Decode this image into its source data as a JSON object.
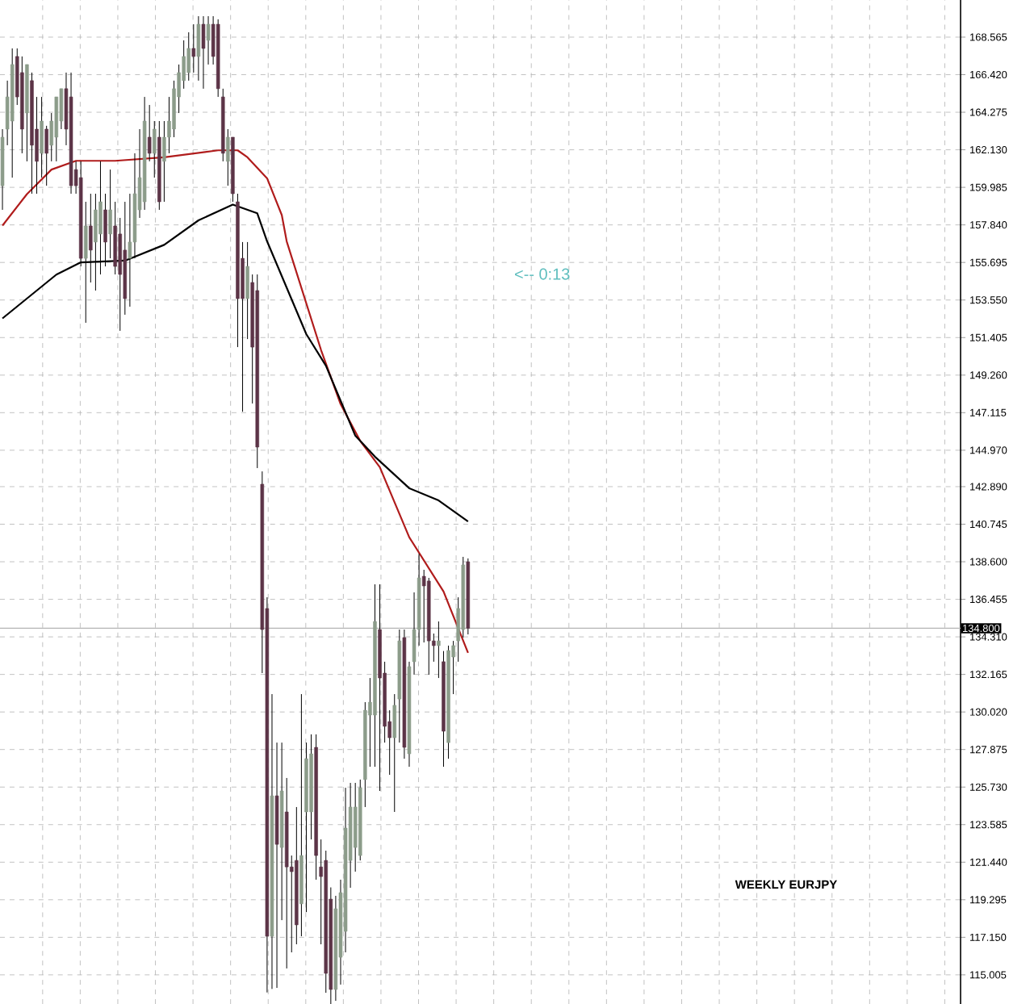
{
  "chart_data": {
    "type": "candlestick",
    "annotations": [
      "<-- 0:13",
      "WEEKLY EURJPY"
    ],
    "categories": [
      null,
      null,
      null,
      null,
      null,
      null,
      null,
      null,
      null,
      null,
      null,
      null,
      null,
      null,
      null,
      null,
      null,
      null,
      null,
      null,
      null,
      null,
      null,
      null,
      null,
      null,
      null,
      null,
      null,
      null,
      null,
      null,
      null,
      null,
      null,
      null,
      null,
      null,
      null,
      null,
      null,
      null,
      null,
      null,
      null,
      null,
      null,
      null,
      null,
      null,
      null,
      null,
      null,
      null,
      null,
      null,
      null,
      null,
      null,
      null,
      null,
      null,
      null,
      null,
      null,
      null,
      null,
      null,
      null,
      null,
      null,
      null,
      null,
      null,
      null,
      null,
      null,
      null,
      null,
      null,
      null,
      null,
      null,
      null,
      null,
      null,
      null,
      null,
      null,
      null,
      null,
      null,
      null,
      null,
      null,
      null,
      null,
      null,
      null,
      null,
      null,
      null,
      null,
      null,
      null,
      null,
      null,
      null,
      null,
      null,
      null,
      null,
      null,
      null,
      null,
      null,
      null,
      null,
      null,
      null,
      null,
      null,
      null,
      null,
      null,
      null,
      null,
      null,
      null,
      null,
      null,
      null,
      null,
      null,
      null,
      null,
      null,
      null,
      null,
      null,
      null,
      null,
      null,
      null,
      null,
      null,
      null,
      null,
      null,
      null,
      null,
      null,
      null,
      null,
      null,
      null,
      null,
      null,
      null,
      null,
      null,
      null,
      null,
      null,
      null,
      null,
      null,
      null,
      null,
      null,
      null,
      null,
      null,
      null,
      null,
      null,
      null,
      null,
      null,
      null,
      null,
      null,
      null,
      null,
      null,
      null,
      null,
      null,
      null,
      null,
      null,
      null,
      null,
      null,
      null,
      null
    ],
    "ohlc": [
      [
        160.08,
        163.31,
        158.7,
        162.85
      ],
      [
        163.31,
        166.08,
        162.39,
        165.15
      ],
      [
        163.77,
        167.92,
        160.54,
        167.0
      ],
      [
        167.46,
        167.92,
        164.69,
        165.15
      ],
      [
        166.54,
        167.46,
        161.93,
        163.31
      ],
      [
        164.23,
        167.0,
        161.47,
        167.0
      ],
      [
        166.08,
        166.54,
        159.62,
        162.39
      ],
      [
        163.31,
        165.15,
        159.62,
        161.47
      ],
      [
        161.93,
        165.15,
        160.54,
        163.77
      ],
      [
        163.31,
        163.5,
        160.08,
        161.93
      ],
      [
        162.39,
        164.23,
        161.47,
        163.77
      ],
      [
        162.85,
        165.15,
        161.47,
        165.15
      ],
      [
        163.77,
        165.62,
        163.31,
        165.62
      ],
      [
        165.62,
        166.54,
        162.39,
        163.31
      ],
      [
        165.15,
        166.54,
        159.62,
        160.08
      ],
      [
        161.0,
        161.47,
        159.62,
        160.08
      ],
      [
        160.54,
        161.47,
        155.47,
        155.93
      ],
      [
        155.93,
        159.16,
        152.25,
        157.78
      ],
      [
        157.78,
        159.62,
        154.55,
        156.4
      ],
      [
        156.86,
        159.62,
        154.09,
        158.7
      ],
      [
        157.32,
        161.47,
        155.01,
        159.16
      ],
      [
        158.7,
        159.62,
        155.47,
        156.86
      ],
      [
        157.32,
        161.0,
        155.93,
        158.7
      ],
      [
        157.78,
        159.16,
        155.01,
        155.47
      ],
      [
        157.32,
        158.24,
        151.79,
        155.01
      ],
      [
        156.4,
        159.16,
        152.71,
        153.63
      ],
      [
        155.93,
        159.62,
        153.17,
        156.86
      ],
      [
        156.86,
        161.93,
        155.93,
        159.62
      ],
      [
        158.7,
        163.31,
        158.24,
        160.54
      ],
      [
        159.16,
        165.15,
        158.7,
        163.77
      ],
      [
        162.85,
        164.69,
        161.47,
        161.93
      ],
      [
        161.93,
        163.77,
        160.54,
        163.31
      ],
      [
        162.85,
        163.77,
        158.7,
        159.16
      ],
      [
        161.47,
        163.77,
        159.16,
        162.85
      ],
      [
        162.85,
        165.15,
        161.93,
        163.77
      ],
      [
        163.31,
        166.08,
        162.85,
        165.62
      ],
      [
        165.15,
        167.0,
        164.23,
        166.54
      ],
      [
        166.08,
        168.38,
        165.62,
        167.46
      ],
      [
        166.54,
        168.84,
        166.08,
        167.92
      ],
      [
        167.92,
        169.3,
        166.54,
        167.46
      ],
      [
        167.46,
        169.76,
        166.08,
        169.3
      ],
      [
        169.3,
        169.76,
        165.62,
        167.92
      ],
      [
        168.38,
        169.76,
        167.0,
        169.3
      ],
      [
        169.3,
        169.76,
        167.0,
        167.46
      ],
      [
        169.3,
        169.58,
        165.15,
        165.62
      ],
      [
        165.15,
        165.62,
        161.47,
        161.93
      ],
      [
        161.47,
        163.31,
        160.08,
        162.85
      ],
      [
        162.85,
        162.85,
        159.16,
        159.62
      ],
      [
        159.16,
        159.62,
        150.86,
        153.63
      ],
      [
        155.93,
        156.86,
        147.17,
        153.63
      ],
      [
        153.63,
        156.86,
        151.32,
        155.47
      ],
      [
        154.55,
        155.01,
        147.64,
        150.86
      ],
      [
        154.09,
        155.01,
        143.95,
        145.15
      ],
      [
        143.03,
        143.76,
        132.24,
        134.73
      ],
      [
        135.93,
        136.57,
        114.0,
        117.21
      ],
      [
        117.21,
        131.04,
        114.2,
        125.23
      ],
      [
        125.23,
        128.27,
        114.26,
        122.46
      ],
      [
        122.28,
        128.27,
        118.13,
        125.51
      ],
      [
        124.31,
        126.25,
        115.37,
        121.17
      ],
      [
        121.17,
        121.82,
        116.29,
        120.9
      ],
      [
        121.54,
        124.59,
        116.75,
        117.86
      ],
      [
        119.06,
        131.04,
        117.21,
        121.82
      ],
      [
        124.31,
        128.27,
        118.59,
        127.35
      ],
      [
        124.31,
        128.74,
        122.74,
        127.63
      ],
      [
        128.0,
        128.74,
        120.44,
        121.82
      ],
      [
        121.17,
        122.74,
        116.75,
        120.62
      ],
      [
        121.54,
        122.1,
        113.98,
        115.09
      ],
      [
        119.33,
        120.0,
        113.34,
        114.17
      ],
      [
        114.17,
        119.52,
        113.52,
        118.78
      ],
      [
        116.01,
        120.44,
        114.45,
        119.7
      ],
      [
        117.49,
        125.69,
        116.29,
        123.39
      ],
      [
        121.54,
        125.97,
        119.98,
        124.59
      ],
      [
        122.28,
        125.97,
        120.9,
        124.59
      ],
      [
        121.82,
        126.16,
        121.54,
        125.69
      ],
      [
        126.16,
        130.58,
        124.59,
        130.12
      ],
      [
        129.84,
        131.96,
        126.89,
        130.58
      ],
      [
        129.84,
        137.31,
        126.89,
        135.19
      ],
      [
        134.73,
        137.31,
        125.51,
        131.96
      ],
      [
        132.24,
        132.89,
        128.27,
        129.2
      ],
      [
        129.47,
        130.12,
        126.43,
        128.55
      ],
      [
        128.55,
        131.04,
        124.31,
        130.4
      ],
      [
        130.76,
        134.73,
        128.27,
        134.08
      ],
      [
        134.27,
        134.73,
        127.35,
        128.0
      ],
      [
        127.63,
        132.89,
        126.89,
        132.61
      ],
      [
        132.89,
        136.85,
        132.15,
        134.73
      ],
      [
        134.73,
        139.06,
        133.81,
        137.68
      ],
      [
        137.77,
        138.14,
        133.99,
        137.22
      ],
      [
        137.5,
        137.68,
        132.15,
        134.08
      ],
      [
        134.08,
        134.5,
        132.89,
        133.81
      ],
      [
        133.81,
        135.19,
        131.96,
        134.08
      ],
      [
        132.89,
        133.5,
        126.89,
        128.92
      ],
      [
        128.27,
        133.81,
        127.35,
        133.53
      ],
      [
        133.16,
        134.08,
        131.04,
        133.81
      ],
      [
        134.08,
        136.57,
        132.89,
        135.93
      ],
      [
        134.73,
        138.88,
        134.27,
        138.42
      ],
      [
        138.6,
        138.79,
        134.45,
        134.8
      ],
      null,
      null,
      null,
      null,
      null,
      null,
      null,
      null,
      null,
      null,
      null,
      null,
      null,
      null,
      null,
      null,
      null,
      null,
      null,
      null,
      null,
      null,
      null,
      null,
      null,
      null,
      null,
      null,
      null,
      null,
      null,
      null,
      null,
      null,
      null,
      null,
      null,
      null,
      null,
      null,
      null,
      null,
      null,
      null,
      null,
      null,
      null,
      null,
      null,
      null,
      null,
      null,
      null,
      null,
      null,
      null,
      null,
      null,
      null,
      null,
      null,
      null,
      null,
      null,
      null,
      null,
      null,
      null,
      null,
      null,
      null,
      null,
      null,
      null,
      null,
      null,
      null,
      null,
      null,
      null,
      null,
      null,
      null,
      null,
      null,
      null,
      null,
      null,
      null,
      null,
      null,
      null,
      null,
      null,
      null,
      null,
      null,
      null,
      null,
      null
    ],
    "colors": [
      "#8c9c8a",
      "#8c9c8a",
      "#8c9c8a",
      "#5c3447",
      "#5c3447",
      "#8c9c8a",
      "#5c3447",
      "#5c3447",
      "#8c9c8a",
      "#5c3447",
      "#8c9c8a",
      "#8c9c8a",
      "#8c9c8a",
      "#5c3447",
      "#5c3447",
      "#5c3447",
      "#5c3447",
      "#8c9c8a",
      "#5c3447",
      "#8c9c8a",
      "#8c9c8a",
      "#5c3447",
      "#8c9c8a",
      "#5c3447",
      "#5c3447",
      "#5c3447",
      "#8c9c8a",
      "#8c9c8a",
      "#8c9c8a",
      "#8c9c8a",
      "#5c3447",
      "#8c9c8a",
      "#5c3447",
      "#8c9c8a",
      "#8c9c8a",
      "#8c9c8a",
      "#8c9c8a",
      "#8c9c8a",
      "#8c9c8a",
      "#5c3447",
      "#8c9c8a",
      "#5c3447",
      "#8c9c8a",
      "#5c3447",
      "#5c3447",
      "#5c3447",
      "#8c9c8a",
      "#5c3447",
      "#5c3447",
      "#5c3447",
      "#8c9c8a",
      "#5c3447",
      "#5c3447",
      "#5c3447",
      "#5c3447",
      "#8c9c8a",
      "#5c3447",
      "#8c9c8a",
      "#5c3447",
      "#5c3447",
      "#5c3447",
      "#8c9c8a",
      "#8c9c8a",
      "#8c9c8a",
      "#5c3447",
      "#5c3447",
      "#5c3447",
      "#5c3447",
      "#8c9c8a",
      "#8c9c8a",
      "#8c9c8a",
      "#8c9c8a",
      "#8c9c8a",
      "#8c9c8a",
      "#8c9c8a",
      "#8c9c8a",
      "#8c9c8a",
      "#5c3447",
      "#5c3447",
      "#5c3447",
      "#8c9c8a",
      "#8c9c8a",
      "#5c3447",
      "#8c9c8a",
      "#8c9c8a",
      "#8c9c8a",
      "#5c3447",
      "#5c3447",
      "#5c3447",
      "#8c9c8a",
      "#5c3447",
      "#8c9c8a",
      "#8c9c8a",
      "#8c9c8a",
      "#8c9c8a",
      "#5c3447",
      null,
      null,
      null,
      null,
      null,
      null,
      null,
      null,
      null,
      null,
      null,
      null,
      null,
      null,
      null,
      null,
      null,
      null,
      null,
      null,
      null,
      null,
      null,
      null,
      null,
      null,
      null,
      null,
      null,
      null,
      null,
      null,
      null,
      null,
      null,
      null,
      null,
      null,
      null,
      null,
      null,
      null,
      null,
      null,
      null,
      null,
      null,
      null,
      null,
      null,
      null,
      null,
      null,
      null,
      null,
      null,
      null,
      null,
      null,
      null,
      null,
      null,
      null,
      null,
      null,
      null,
      null,
      null,
      null,
      null,
      null,
      null,
      null,
      null,
      null,
      null,
      null,
      null,
      null,
      null,
      null,
      null,
      null,
      null,
      null,
      null,
      null,
      null,
      null,
      null,
      null,
      null,
      null,
      null,
      null,
      null,
      null,
      null,
      null,
      null
    ],
    "series": [
      {
        "type": "line",
        "color": "#b01c1c",
        "values": [
          157.8,
          null,
          null,
          null,
          null,
          159.6,
          null,
          null,
          null,
          null,
          161.0,
          null,
          null,
          null,
          null,
          161.5,
          null,
          null,
          null,
          null,
          null,
          null,
          null,
          161.5,
          null,
          null,
          null,
          null,
          null,
          null,
          null,
          null,
          null,
          161.7,
          null,
          null,
          null,
          null,
          null,
          null,
          null,
          null,
          null,
          null,
          162.1,
          null,
          null,
          null,
          162.1,
          null,
          161.7,
          null,
          null,
          null,
          160.5,
          null,
          null,
          158.4,
          156.9,
          null,
          null,
          null,
          null,
          null,
          null,
          150.7,
          null,
          null,
          null,
          147.6,
          null,
          null,
          null,
          145.5,
          null,
          null,
          null,
          144.0,
          null,
          null,
          null,
          null,
          null,
          140.0,
          null,
          null,
          null,
          null,
          null,
          null,
          136.9,
          null,
          null,
          null,
          null,
          133.4,
          null,
          null,
          null,
          null,
          null,
          null,
          null,
          null,
          null,
          null,
          null,
          null,
          null,
          null,
          null,
          null,
          null,
          null,
          null,
          null,
          null,
          null,
          null,
          null,
          null,
          null,
          null,
          null,
          null,
          null,
          null,
          null,
          null,
          null,
          null,
          null,
          null,
          null,
          null,
          null,
          null,
          null,
          null,
          null,
          null,
          null,
          null,
          null,
          null,
          null,
          null,
          null,
          null,
          null,
          null,
          null,
          null,
          null,
          null,
          null,
          null,
          null,
          null,
          null,
          null,
          null,
          null,
          null,
          null,
          null,
          null,
          null,
          null,
          null,
          null,
          null,
          null,
          null,
          null,
          null,
          null,
          null,
          null,
          null,
          null,
          null,
          null,
          null,
          null,
          null,
          null,
          null,
          null,
          null,
          null,
          null,
          null,
          null,
          null,
          null
        ]
      },
      {
        "type": "line",
        "color": "#000000",
        "values": [
          152.5,
          null,
          null,
          null,
          null,
          null,
          null,
          null,
          null,
          null,
          null,
          155.0,
          null,
          null,
          null,
          null,
          155.7,
          null,
          null,
          null,
          null,
          null,
          null,
          null,
          null,
          155.8,
          null,
          null,
          null,
          null,
          null,
          null,
          null,
          156.7,
          null,
          null,
          null,
          null,
          null,
          null,
          158.1,
          null,
          null,
          null,
          null,
          null,
          null,
          159.0,
          null,
          null,
          null,
          null,
          158.5,
          null,
          156.9,
          null,
          null,
          null,
          null,
          null,
          null,
          null,
          151.6,
          null,
          null,
          null,
          149.8,
          null,
          null,
          null,
          null,
          null,
          145.8,
          null,
          null,
          null,
          144.6,
          null,
          null,
          null,
          null,
          null,
          null,
          142.8,
          null,
          null,
          null,
          null,
          null,
          142.1,
          null,
          null,
          null,
          null,
          null,
          140.9,
          null,
          null,
          null,
          null,
          null,
          null,
          null,
          null,
          null,
          null,
          null,
          null,
          null,
          null,
          null,
          null,
          null,
          null,
          null,
          null,
          null,
          null,
          null,
          null,
          null,
          null,
          null,
          null,
          null,
          null,
          null,
          null,
          null,
          null,
          null,
          null,
          null,
          null,
          null,
          null,
          null,
          null,
          null,
          null,
          null,
          null,
          null,
          null,
          null,
          null,
          null,
          null,
          null,
          null,
          null,
          null,
          null,
          null,
          null,
          null,
          null,
          null,
          null,
          null,
          null,
          null,
          null,
          null,
          null,
          null,
          null,
          null,
          null,
          null,
          null,
          null,
          null,
          null,
          null,
          null,
          null,
          null,
          null,
          null,
          null,
          null,
          null,
          null,
          null,
          null,
          null,
          null,
          null,
          null,
          null,
          null,
          null,
          null,
          null,
          null
        ]
      }
    ],
    "ylim": [
      113.34,
      170.686
    ],
    "yticks": [
      {
        "value": 115.005,
        "label": "115.005"
      },
      {
        "value": 117.15,
        "label": "117.150"
      },
      {
        "value": 119.295,
        "label": "119.295"
      },
      {
        "value": 121.44,
        "label": "121.440"
      },
      {
        "value": 123.585,
        "label": "123.585"
      },
      {
        "value": 125.73,
        "label": "125.730"
      },
      {
        "value": 127.875,
        "label": "127.875"
      },
      {
        "value": 130.02,
        "label": "130.020"
      },
      {
        "value": 132.165,
        "label": "132.165"
      },
      {
        "value": 134.31,
        "label": "134.310"
      },
      {
        "value": 136.455,
        "label": "136.455"
      },
      {
        "value": 138.6,
        "label": "138.600"
      },
      {
        "value": 140.745,
        "label": "140.745"
      },
      {
        "value": 142.89,
        "label": "142.890"
      },
      {
        "value": 144.97,
        "label": "144.970"
      },
      {
        "value": 147.115,
        "label": "147.115"
      },
      {
        "value": 149.26,
        "label": "149.260"
      },
      {
        "value": 151.405,
        "label": "151.405"
      },
      {
        "value": 153.55,
        "label": "153.550"
      },
      {
        "value": 155.695,
        "label": "155.695"
      },
      {
        "value": 157.84,
        "label": "157.840"
      },
      {
        "value": 159.985,
        "label": "159.985"
      },
      {
        "value": 162.13,
        "label": "162.130"
      },
      {
        "value": 164.275,
        "label": "164.275"
      },
      {
        "value": 166.42,
        "label": "166.420"
      },
      {
        "value": 168.565,
        "label": "168.565"
      }
    ],
    "ref_lines": [
      {
        "axis": "y",
        "value": 134.8,
        "label": "134.800",
        "color": "#b4b4b4"
      }
    ],
    "grid": true,
    "tick_labels": "y"
  }
}
